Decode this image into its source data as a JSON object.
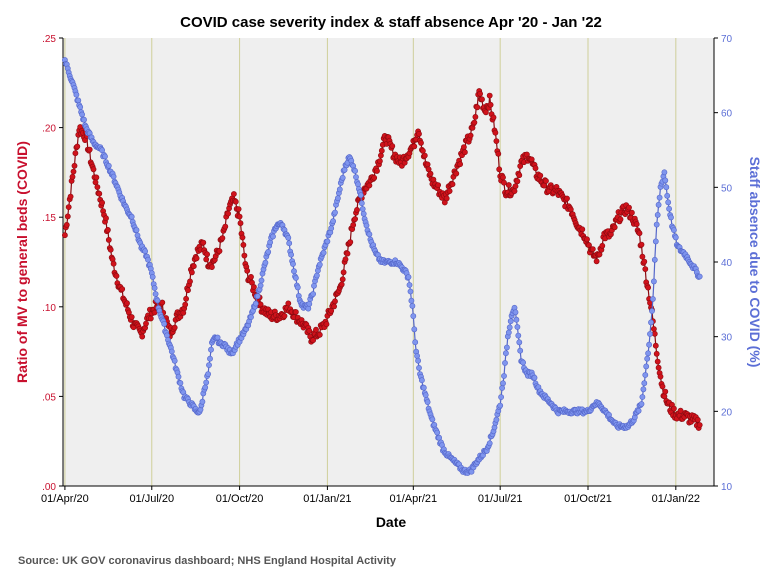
{
  "chart_data": {
    "type": "line",
    "title": "COVID case severity index & staff absence Apr '20 - Jan '22",
    "xlabel": "Date",
    "ylabel_left": "Ratio of MV to general beds (COVID)",
    "ylabel_right": "Staff absence due to COVID (%)",
    "source": "Source: UK GOV coronavirus dashboard; NHS England Hospital Activity",
    "x_tick_labels": [
      "01/Apr/20",
      "01/Jul/20",
      "01/Oct/20",
      "01/Jan/21",
      "01/Apr/21",
      "01/Jul/21",
      "01/Oct/21",
      "01/Jan/22"
    ],
    "x_tick_days": [
      0,
      91,
      183,
      275,
      365,
      456,
      548,
      640
    ],
    "x_range_days": [
      -2,
      680
    ],
    "left_axis": {
      "range": [
        0,
        0.25
      ],
      "ticks": [
        0.0,
        0.05,
        0.1,
        0.15,
        0.2,
        0.25
      ],
      "tick_labels": [
        ".00",
        ".05",
        ".10",
        ".15",
        ".20",
        ".25"
      ]
    },
    "right_axis": {
      "range": [
        10,
        70
      ],
      "ticks": [
        10,
        20,
        30,
        40,
        50,
        60,
        70
      ],
      "tick_labels": [
        "10",
        "20",
        "30",
        "40",
        "50",
        "60",
        "70"
      ]
    },
    "colors": {
      "left_series": "#d0121b",
      "right_series": "#7f95ee",
      "background": "#efefef",
      "vline": "#cfcf9a"
    },
    "series": [
      {
        "name": "Ratio of MV to general beds (COVID)",
        "axis": "left",
        "points": [
          [
            0,
            0.14
          ],
          [
            5,
            0.16
          ],
          [
            10,
            0.18
          ],
          [
            15,
            0.2
          ],
          [
            22,
            0.195
          ],
          [
            28,
            0.18
          ],
          [
            35,
            0.165
          ],
          [
            42,
            0.15
          ],
          [
            50,
            0.125
          ],
          [
            58,
            0.11
          ],
          [
            65,
            0.1
          ],
          [
            72,
            0.09
          ],
          [
            80,
            0.085
          ],
          [
            88,
            0.095
          ],
          [
            95,
            0.1
          ],
          [
            102,
            0.1
          ],
          [
            110,
            0.085
          ],
          [
            118,
            0.095
          ],
          [
            125,
            0.1
          ],
          [
            132,
            0.12
          ],
          [
            138,
            0.13
          ],
          [
            145,
            0.135
          ],
          [
            150,
            0.125
          ],
          [
            155,
            0.125
          ],
          [
            160,
            0.13
          ],
          [
            166,
            0.14
          ],
          [
            172,
            0.155
          ],
          [
            177,
            0.16
          ],
          [
            183,
            0.15
          ],
          [
            190,
            0.12
          ],
          [
            198,
            0.11
          ],
          [
            206,
            0.1
          ],
          [
            215,
            0.095
          ],
          [
            225,
            0.095
          ],
          [
            235,
            0.1
          ],
          [
            242,
            0.095
          ],
          [
            250,
            0.09
          ],
          [
            258,
            0.083
          ],
          [
            265,
            0.085
          ],
          [
            272,
            0.09
          ],
          [
            280,
            0.1
          ],
          [
            288,
            0.11
          ],
          [
            296,
            0.13
          ],
          [
            303,
            0.15
          ],
          [
            312,
            0.165
          ],
          [
            320,
            0.17
          ],
          [
            328,
            0.18
          ],
          [
            336,
            0.195
          ],
          [
            345,
            0.185
          ],
          [
            352,
            0.18
          ],
          [
            358,
            0.185
          ],
          [
            365,
            0.19
          ],
          [
            370,
            0.2
          ],
          [
            378,
            0.18
          ],
          [
            385,
            0.17
          ],
          [
            392,
            0.165
          ],
          [
            398,
            0.16
          ],
          [
            405,
            0.17
          ],
          [
            412,
            0.18
          ],
          [
            420,
            0.19
          ],
          [
            428,
            0.2
          ],
          [
            434,
            0.22
          ],
          [
            440,
            0.21
          ],
          [
            445,
            0.215
          ],
          [
            450,
            0.2
          ],
          [
            456,
            0.175
          ],
          [
            462,
            0.165
          ],
          [
            470,
            0.165
          ],
          [
            478,
            0.18
          ],
          [
            486,
            0.185
          ],
          [
            493,
            0.175
          ],
          [
            500,
            0.17
          ],
          [
            508,
            0.165
          ],
          [
            515,
            0.165
          ],
          [
            522,
            0.16
          ],
          [
            530,
            0.155
          ],
          [
            538,
            0.145
          ],
          [
            545,
            0.14
          ],
          [
            552,
            0.13
          ],
          [
            558,
            0.127
          ],
          [
            565,
            0.14
          ],
          [
            572,
            0.14
          ],
          [
            580,
            0.15
          ],
          [
            588,
            0.155
          ],
          [
            595,
            0.15
          ],
          [
            602,
            0.14
          ],
          [
            608,
            0.12
          ],
          [
            614,
            0.1
          ],
          [
            620,
            0.075
          ],
          [
            626,
            0.055
          ],
          [
            632,
            0.045
          ],
          [
            640,
            0.04
          ],
          [
            650,
            0.039
          ],
          [
            660,
            0.036
          ],
          [
            665,
            0.035
          ]
        ]
      },
      {
        "name": "Staff absence due to COVID (%)",
        "axis": "right",
        "points": [
          [
            0,
            67
          ],
          [
            8,
            64
          ],
          [
            15,
            61
          ],
          [
            22,
            58
          ],
          [
            30,
            56
          ],
          [
            38,
            55
          ],
          [
            45,
            53
          ],
          [
            52,
            51
          ],
          [
            58,
            49
          ],
          [
            65,
            47
          ],
          [
            70,
            46
          ],
          [
            75,
            44
          ],
          [
            80,
            42
          ],
          [
            85,
            41
          ],
          [
            90,
            39
          ],
          [
            98,
            34
          ],
          [
            105,
            31
          ],
          [
            112,
            28
          ],
          [
            118,
            25
          ],
          [
            125,
            22
          ],
          [
            132,
            21
          ],
          [
            138,
            20
          ],
          [
            142,
            20
          ],
          [
            146,
            23
          ],
          [
            150,
            25
          ],
          [
            154,
            29
          ],
          [
            158,
            30
          ],
          [
            163,
            29
          ],
          [
            167,
            29
          ],
          [
            172,
            28
          ],
          [
            176,
            28
          ],
          [
            180,
            29
          ],
          [
            185,
            30
          ],
          [
            190,
            31
          ],
          [
            196,
            33
          ],
          [
            203,
            36
          ],
          [
            210,
            40
          ],
          [
            216,
            43
          ],
          [
            222,
            45
          ],
          [
            228,
            45
          ],
          [
            234,
            43
          ],
          [
            240,
            39
          ],
          [
            246,
            35
          ],
          [
            250,
            34
          ],
          [
            255,
            34
          ],
          [
            260,
            36
          ],
          [
            265,
            39
          ],
          [
            270,
            41
          ],
          [
            275,
            43
          ],
          [
            280,
            45
          ],
          [
            285,
            48
          ],
          [
            290,
            51
          ],
          [
            294,
            53
          ],
          [
            298,
            54
          ],
          [
            302,
            53
          ],
          [
            308,
            50
          ],
          [
            314,
            46
          ],
          [
            320,
            43
          ],
          [
            326,
            41
          ],
          [
            332,
            40
          ],
          [
            340,
            40
          ],
          [
            348,
            40
          ],
          [
            355,
            39
          ],
          [
            360,
            38
          ],
          [
            364,
            34
          ],
          [
            368,
            28
          ],
          [
            372,
            25
          ],
          [
            378,
            22
          ],
          [
            384,
            19
          ],
          [
            390,
            17
          ],
          [
            396,
            15
          ],
          [
            402,
            14
          ],
          [
            410,
            13
          ],
          [
            418,
            12
          ],
          [
            425,
            12
          ],
          [
            430,
            13
          ],
          [
            436,
            14
          ],
          [
            442,
            15
          ],
          [
            448,
            17
          ],
          [
            452,
            19
          ],
          [
            456,
            21
          ],
          [
            460,
            25
          ],
          [
            464,
            30
          ],
          [
            468,
            33
          ],
          [
            471,
            34
          ],
          [
            474,
            31
          ],
          [
            478,
            27
          ],
          [
            484,
            25
          ],
          [
            490,
            25
          ],
          [
            496,
            23
          ],
          [
            502,
            22
          ],
          [
            510,
            21
          ],
          [
            516,
            20
          ],
          [
            522,
            20
          ],
          [
            530,
            20
          ],
          [
            536,
            20
          ],
          [
            542,
            20
          ],
          [
            548,
            20
          ],
          [
            555,
            21
          ],
          [
            560,
            21
          ],
          [
            566,
            20
          ],
          [
            572,
            19
          ],
          [
            578,
            18
          ],
          [
            584,
            18
          ],
          [
            590,
            18
          ],
          [
            596,
            19
          ],
          [
            600,
            20
          ],
          [
            604,
            21
          ],
          [
            608,
            25
          ],
          [
            612,
            29
          ],
          [
            616,
            35
          ],
          [
            620,
            45
          ],
          [
            624,
            50
          ],
          [
            628,
            52
          ],
          [
            632,
            48
          ],
          [
            636,
            45
          ],
          [
            642,
            42
          ],
          [
            650,
            41
          ],
          [
            655,
            40
          ],
          [
            660,
            39
          ],
          [
            665,
            38
          ]
        ]
      }
    ]
  }
}
